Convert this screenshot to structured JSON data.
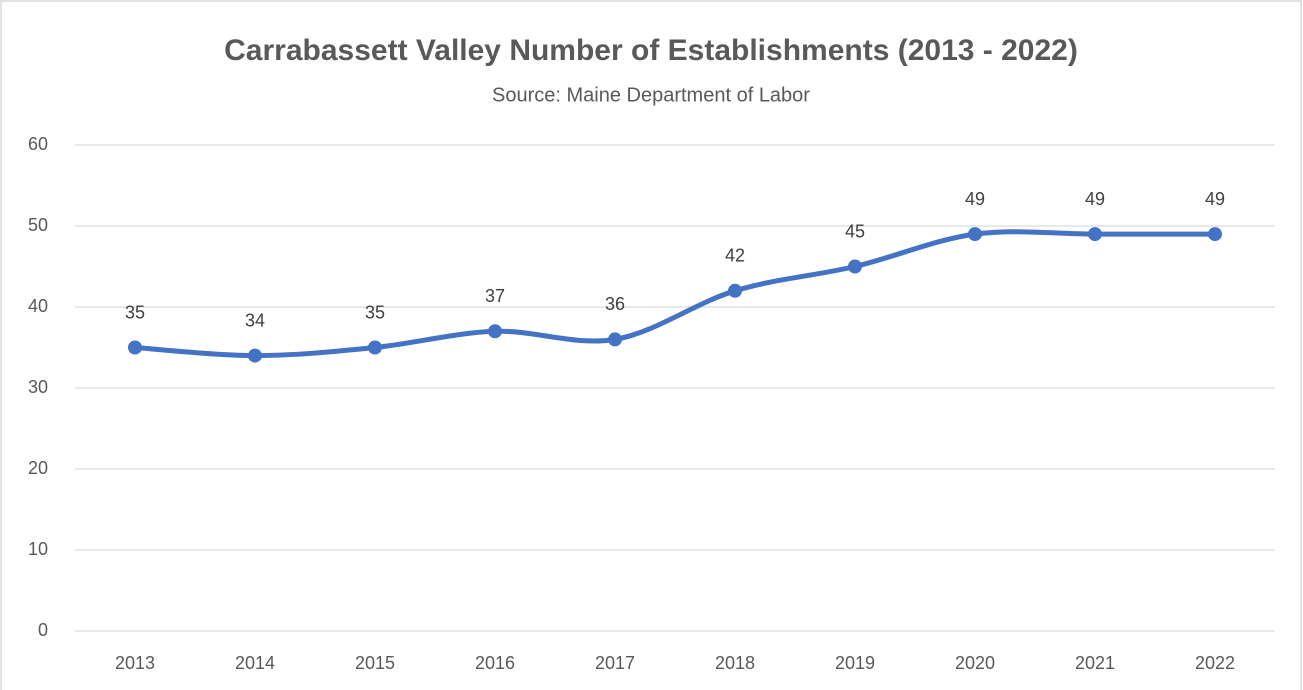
{
  "chart_data": {
    "type": "line",
    "title": "Carrabassett Valley Number of Establishments (2013 - 2022)",
    "subtitle": "Source: Maine Department of Labor",
    "categories": [
      "2013",
      "2014",
      "2015",
      "2016",
      "2017",
      "2018",
      "2019",
      "2020",
      "2021",
      "2022"
    ],
    "series": [
      {
        "name": "Establishments",
        "color": "#4472c4",
        "values": [
          35,
          34,
          35,
          37,
          36,
          42,
          45,
          49,
          49,
          49
        ]
      }
    ],
    "ylim": [
      0,
      60
    ],
    "yticks": [
      0,
      10,
      20,
      30,
      40,
      50,
      60
    ],
    "grid": true,
    "smooth": true
  }
}
